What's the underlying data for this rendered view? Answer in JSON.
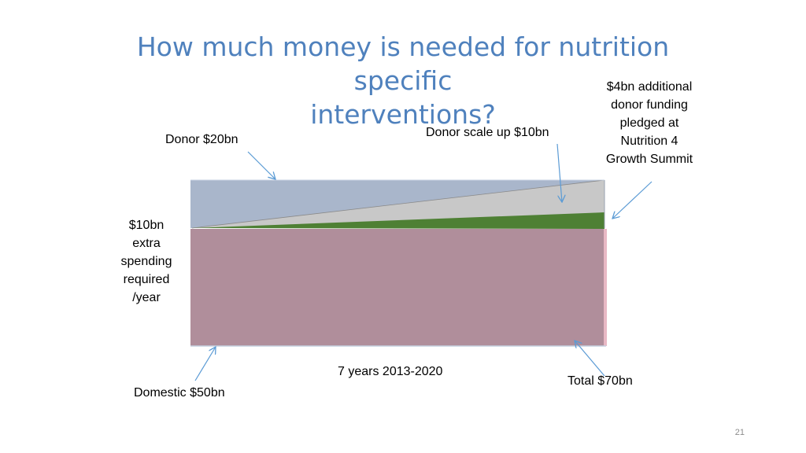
{
  "title": {
    "line1": "How much money is needed for nutrition specific",
    "line2": "interventions?"
  },
  "labels": {
    "donor": "Donor $20bn",
    "donor_scale_up": "Donor scale up $10bn",
    "additional_lines": [
      "$4bn additional",
      "donor  funding",
      "pledged at",
      "Nutrition 4",
      "Growth Summit"
    ],
    "extra_spending_lines": [
      "$10bn",
      "extra",
      "spending",
      "required",
      "/year"
    ],
    "years": "7 years 2013-2020",
    "domestic": "Domestic $50bn",
    "total": "Total $70bn"
  },
  "colors": {
    "title": "#4f81bd",
    "donor_block": "#a9b6cb",
    "scale_up_wedge": "#c8c8c8",
    "pledge_wedge": "#4e8034",
    "domestic_block": "#b08e9b",
    "arrows": "#5b9bd5"
  },
  "page_number": "21"
}
